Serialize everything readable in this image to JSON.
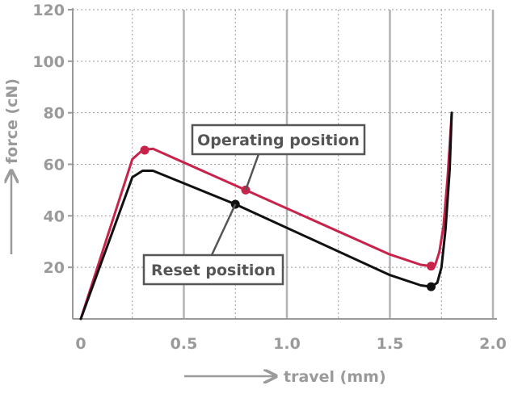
{
  "chart_data": {
    "type": "line",
    "title": "",
    "xlabel": "travel (mm)",
    "ylabel": "force (cN)",
    "xlim": [
      0,
      2.0
    ],
    "ylim": [
      0,
      120
    ],
    "x_ticks": [
      "0",
      "0.5",
      "1.0",
      "1.5",
      "2.0"
    ],
    "y_ticks": [
      "20",
      "40",
      "60",
      "80",
      "100",
      "120"
    ],
    "x_tick_values": [
      0,
      0.5,
      1.0,
      1.5,
      2.0
    ],
    "y_tick_values": [
      20,
      40,
      60,
      80,
      100,
      120
    ],
    "grid": true,
    "series": [
      {
        "key": "operating",
        "color": "#c8234a",
        "points": [
          [
            0,
            0
          ],
          [
            0.25,
            62
          ],
          [
            0.3,
            65.5
          ],
          [
            0.35,
            66
          ],
          [
            0.8,
            50
          ],
          [
            1.5,
            25
          ],
          [
            1.65,
            21
          ],
          [
            1.7,
            20.5
          ],
          [
            1.72,
            21
          ],
          [
            1.74,
            26
          ],
          [
            1.76,
            36
          ],
          [
            1.78,
            55
          ],
          [
            1.8,
            80
          ]
        ],
        "markers": [
          [
            0.31,
            65.5
          ],
          [
            0.8,
            50
          ],
          [
            1.7,
            20.5
          ]
        ]
      },
      {
        "key": "reset",
        "color": "#111111",
        "points": [
          [
            0,
            0
          ],
          [
            0.25,
            55
          ],
          [
            0.3,
            57.5
          ],
          [
            0.35,
            57.5
          ],
          [
            0.75,
            44.5
          ],
          [
            1.5,
            17
          ],
          [
            1.65,
            13
          ],
          [
            1.7,
            12.5
          ],
          [
            1.73,
            14
          ],
          [
            1.75,
            20
          ],
          [
            1.77,
            35
          ],
          [
            1.79,
            58
          ],
          [
            1.8,
            80
          ]
        ],
        "markers": [
          [
            0.75,
            44.5
          ],
          [
            1.7,
            12.5
          ]
        ]
      }
    ],
    "annotations": [
      {
        "key": "operating_label",
        "text": "Operating position",
        "points_to": [
          0.8,
          50
        ]
      },
      {
        "key": "reset_label",
        "text": "Reset position",
        "points_to": [
          0.75,
          44.5
        ]
      }
    ]
  }
}
